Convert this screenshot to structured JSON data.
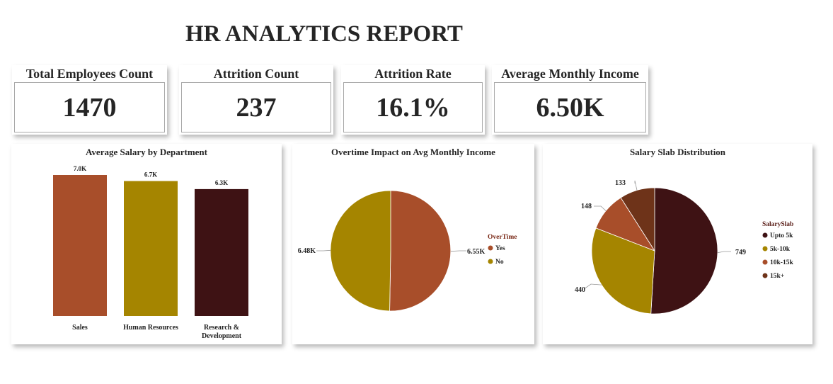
{
  "report": {
    "title": "HR ANALYTICS REPORT"
  },
  "kpis": [
    {
      "label": "Total Employees Count",
      "value": "1470"
    },
    {
      "label": "Attrition Count",
      "value": "237"
    },
    {
      "label": "Attrition Rate",
      "value": "16.1%"
    },
    {
      "label": "Average Monthly Income",
      "value": "6.50K"
    }
  ],
  "colors": {
    "brown_orange": "#A84E2A",
    "olive_gold": "#A58500",
    "dark_maroon": "#3E1214",
    "chestnut": "#6E3319"
  },
  "chart_data": [
    {
      "type": "bar",
      "title": "Average Salary by Department",
      "categories": [
        "Sales",
        "Human Resources",
        "Research & Development"
      ],
      "category_lines": [
        [
          "Sales"
        ],
        [
          "Human Resources"
        ],
        [
          "Research &",
          "Development"
        ]
      ],
      "values": [
        7.0,
        6.7,
        6.3
      ],
      "data_labels": [
        "7.0K",
        "6.7K",
        "6.3K"
      ],
      "colors": [
        "#A84E2A",
        "#A58500",
        "#3E1214"
      ],
      "ylim": [
        0,
        7.0
      ],
      "grid": false
    },
    {
      "type": "pie",
      "title": "Overtime Impact on Avg Monthly Income",
      "legend_title": "OverTime",
      "legend_position": "right",
      "slices": [
        {
          "label": "Yes",
          "value": 6.55,
          "data_label": "6.55K",
          "color": "#A84E2A"
        },
        {
          "label": "No",
          "value": 6.48,
          "data_label": "6.48K",
          "color": "#A58500"
        }
      ]
    },
    {
      "type": "pie",
      "title": "Salary Slab Distribution",
      "legend_title": "SalarySlab",
      "legend_position": "right",
      "slices": [
        {
          "label": "Upto 5k",
          "value": 749,
          "data_label": "749",
          "color": "#3E1214"
        },
        {
          "label": "5k-10k",
          "value": 440,
          "data_label": "440",
          "color": "#A58500"
        },
        {
          "label": "10k-15k",
          "value": 148,
          "data_label": "148",
          "color": "#A84E2A"
        },
        {
          "label": "15k+",
          "value": 133,
          "data_label": "133",
          "color": "#6E3319"
        }
      ]
    }
  ]
}
